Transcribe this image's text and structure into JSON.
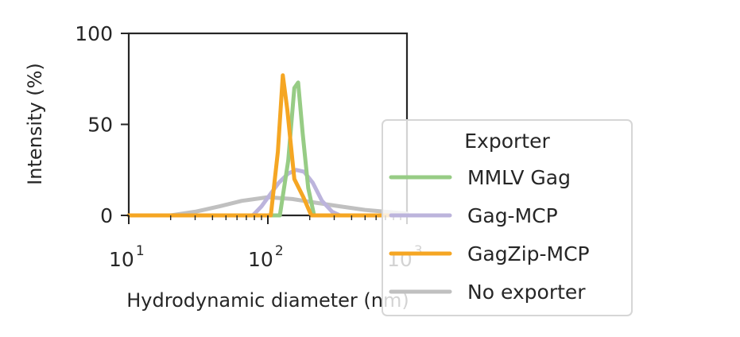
{
  "chart_data": {
    "type": "line",
    "xlabel": "Hydrodynamic diameter (nm)",
    "ylabel": "Intensity (%)",
    "xscale": "log",
    "xlim": [
      10,
      1000
    ],
    "ylim": [
      0,
      100
    ],
    "yticks": [
      {
        "value": 0,
        "label": "0"
      },
      {
        "value": 50,
        "label": "50"
      },
      {
        "value": 100,
        "label": "100"
      }
    ],
    "xticks": [
      {
        "value": 10,
        "base": "10",
        "exp": "1"
      },
      {
        "value": 100,
        "base": "10",
        "exp": "2"
      },
      {
        "value": 1000,
        "base": "10",
        "exp": "3"
      }
    ],
    "grid": false,
    "legend": {
      "title": "Exporter",
      "placement": "lower-right, outside plot area",
      "entries": [
        "MMLV Gag",
        "Gag-MCP",
        "GagZip-MCP",
        "No exporter"
      ]
    },
    "series": [
      {
        "name": "MMLV Gag",
        "color": "#97cc85",
        "points": [
          [
            10,
            0
          ],
          [
            20,
            0
          ],
          [
            50,
            0
          ],
          [
            100,
            0
          ],
          [
            122,
            0
          ],
          [
            140,
            30
          ],
          [
            155,
            70
          ],
          [
            165,
            73
          ],
          [
            178,
            45
          ],
          [
            195,
            15
          ],
          [
            215,
            0
          ],
          [
            300,
            0
          ],
          [
            1000,
            0
          ]
        ]
      },
      {
        "name": "Gag-MCP",
        "color": "#bcb4dc",
        "points": [
          [
            10,
            0
          ],
          [
            50,
            0
          ],
          [
            78,
            0
          ],
          [
            90,
            5
          ],
          [
            105,
            12
          ],
          [
            120,
            18
          ],
          [
            140,
            23
          ],
          [
            160,
            25
          ],
          [
            182,
            24
          ],
          [
            210,
            18
          ],
          [
            245,
            8
          ],
          [
            290,
            2
          ],
          [
            330,
            0
          ],
          [
            1000,
            0
          ]
        ]
      },
      {
        "name": "GagZip-MCP",
        "color": "#f5a623",
        "points": [
          [
            10,
            0
          ],
          [
            50,
            0
          ],
          [
            105,
            0
          ],
          [
            118,
            35
          ],
          [
            128,
            77
          ],
          [
            138,
            58
          ],
          [
            155,
            20
          ],
          [
            180,
            10
          ],
          [
            205,
            0
          ],
          [
            300,
            0
          ],
          [
            1000,
            0
          ]
        ]
      },
      {
        "name": "No exporter",
        "color": "#c0c0c0",
        "points": [
          [
            10,
            0
          ],
          [
            20,
            0
          ],
          [
            30,
            2
          ],
          [
            45,
            5
          ],
          [
            65,
            8
          ],
          [
            100,
            10
          ],
          [
            150,
            9
          ],
          [
            220,
            7
          ],
          [
            330,
            5
          ],
          [
            500,
            3
          ],
          [
            700,
            2
          ],
          [
            1000,
            1
          ]
        ]
      }
    ]
  }
}
